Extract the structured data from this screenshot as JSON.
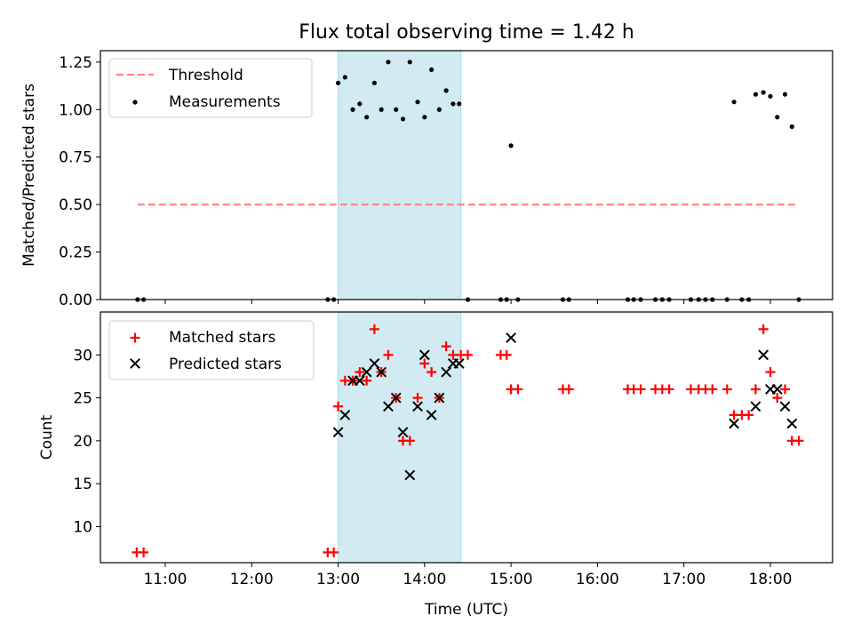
{
  "chart_data": [
    {
      "type": "scatter",
      "title": "Flux total observing time = 1.42 h",
      "ylabel": "Matched/Predicted stars",
      "xlabel": "",
      "xlim": [
        10.25,
        18.72
      ],
      "ylim": [
        0.0,
        1.31
      ],
      "x_ticks": [
        11,
        12,
        13,
        14,
        15,
        16,
        17,
        18
      ],
      "y_ticks": [
        0.0,
        0.25,
        0.5,
        0.75,
        1.0,
        1.25
      ],
      "y_tick_labels": [
        "0.00",
        "0.25",
        "0.50",
        "0.75",
        "1.00",
        "1.25"
      ],
      "highlight_span": [
        13.0,
        14.42
      ],
      "highlight_color": "#add8e6",
      "legend_position": "top-left",
      "threshold": {
        "name": "Threshold",
        "y": 0.5,
        "x_range": [
          10.68,
          18.32
        ],
        "color": "#ff7f7f"
      },
      "series": [
        {
          "name": "Measurements",
          "color": "#000000",
          "points": [
            [
              10.68,
              0.0
            ],
            [
              10.75,
              0.0
            ],
            [
              12.88,
              0.0
            ],
            [
              12.95,
              0.0
            ],
            [
              13.0,
              1.14
            ],
            [
              13.08,
              1.17
            ],
            [
              13.17,
              1.0
            ],
            [
              13.25,
              1.03
            ],
            [
              13.33,
              0.96
            ],
            [
              13.42,
              1.14
            ],
            [
              13.5,
              1.0
            ],
            [
              13.58,
              1.25
            ],
            [
              13.67,
              1.0
            ],
            [
              13.75,
              0.95
            ],
            [
              13.83,
              1.25
            ],
            [
              13.92,
              1.04
            ],
            [
              14.0,
              0.96
            ],
            [
              14.08,
              1.21
            ],
            [
              14.17,
              1.0
            ],
            [
              14.25,
              1.1
            ],
            [
              14.33,
              1.03
            ],
            [
              14.4,
              1.03
            ],
            [
              14.5,
              0.0
            ],
            [
              14.88,
              0.0
            ],
            [
              14.95,
              0.0
            ],
            [
              15.0,
              0.81
            ],
            [
              15.08,
              0.0
            ],
            [
              15.6,
              0.0
            ],
            [
              15.67,
              0.0
            ],
            [
              16.35,
              0.0
            ],
            [
              16.42,
              0.0
            ],
            [
              16.5,
              0.0
            ],
            [
              16.67,
              0.0
            ],
            [
              16.75,
              0.0
            ],
            [
              16.83,
              0.0
            ],
            [
              17.08,
              0.0
            ],
            [
              17.17,
              0.0
            ],
            [
              17.25,
              0.0
            ],
            [
              17.33,
              0.0
            ],
            [
              17.5,
              0.0
            ],
            [
              17.58,
              1.04
            ],
            [
              17.67,
              0.0
            ],
            [
              17.75,
              0.0
            ],
            [
              17.83,
              1.08
            ],
            [
              17.92,
              1.09
            ],
            [
              18.0,
              1.07
            ],
            [
              18.08,
              0.96
            ],
            [
              18.17,
              1.08
            ],
            [
              18.25,
              0.91
            ],
            [
              18.33,
              0.0
            ]
          ]
        }
      ]
    },
    {
      "type": "scatter",
      "title": "",
      "ylabel": "Count",
      "xlabel": "Time (UTC)",
      "xlim": [
        10.25,
        18.72
      ],
      "ylim": [
        5.8,
        35.0
      ],
      "x_ticks": [
        11,
        12,
        13,
        14,
        15,
        16,
        17,
        18
      ],
      "x_tick_labels": [
        "11:00",
        "12:00",
        "13:00",
        "14:00",
        "15:00",
        "16:00",
        "17:00",
        "18:00"
      ],
      "y_ticks": [
        10,
        15,
        20,
        25,
        30
      ],
      "y_tick_labels": [
        "10",
        "15",
        "20",
        "25",
        "30"
      ],
      "highlight_span": [
        13.0,
        14.42
      ],
      "highlight_color": "#add8e6",
      "legend_position": "top-left",
      "series": [
        {
          "name": "Matched stars",
          "marker": "plus",
          "color": "#ff0000",
          "points": [
            [
              10.67,
              7
            ],
            [
              10.75,
              7
            ],
            [
              12.88,
              7
            ],
            [
              12.95,
              7
            ],
            [
              13.0,
              24
            ],
            [
              13.08,
              27
            ],
            [
              13.17,
              27
            ],
            [
              13.25,
              28
            ],
            [
              13.33,
              27
            ],
            [
              13.42,
              33
            ],
            [
              13.5,
              28
            ],
            [
              13.58,
              30
            ],
            [
              13.67,
              25
            ],
            [
              13.75,
              20
            ],
            [
              13.83,
              20
            ],
            [
              13.92,
              25
            ],
            [
              14.0,
              29
            ],
            [
              14.08,
              28
            ],
            [
              14.17,
              25
            ],
            [
              14.25,
              31
            ],
            [
              14.33,
              30
            ],
            [
              14.42,
              30
            ],
            [
              14.5,
              30
            ],
            [
              14.88,
              30
            ],
            [
              14.95,
              30
            ],
            [
              15.0,
              26
            ],
            [
              15.08,
              26
            ],
            [
              15.6,
              26
            ],
            [
              15.67,
              26
            ],
            [
              16.35,
              26
            ],
            [
              16.42,
              26
            ],
            [
              16.5,
              26
            ],
            [
              16.67,
              26
            ],
            [
              16.75,
              26
            ],
            [
              16.83,
              26
            ],
            [
              17.08,
              26
            ],
            [
              17.17,
              26
            ],
            [
              17.25,
              26
            ],
            [
              17.33,
              26
            ],
            [
              17.5,
              26
            ],
            [
              17.58,
              23
            ],
            [
              17.67,
              23
            ],
            [
              17.75,
              23
            ],
            [
              17.83,
              26
            ],
            [
              17.92,
              33
            ],
            [
              18.0,
              28
            ],
            [
              18.08,
              25
            ],
            [
              18.17,
              26
            ],
            [
              18.25,
              20
            ],
            [
              18.33,
              20
            ]
          ]
        },
        {
          "name": "Predicted stars",
          "marker": "x",
          "color": "#000000",
          "points": [
            [
              13.0,
              21
            ],
            [
              13.08,
              23
            ],
            [
              13.17,
              27
            ],
            [
              13.25,
              27
            ],
            [
              13.33,
              28
            ],
            [
              13.42,
              29
            ],
            [
              13.5,
              28
            ],
            [
              13.58,
              24
            ],
            [
              13.67,
              25
            ],
            [
              13.75,
              21
            ],
            [
              13.83,
              16
            ],
            [
              13.92,
              24
            ],
            [
              14.0,
              30
            ],
            [
              14.08,
              23
            ],
            [
              14.17,
              25
            ],
            [
              14.25,
              28
            ],
            [
              14.33,
              29
            ],
            [
              14.4,
              29
            ],
            [
              15.0,
              32
            ],
            [
              17.58,
              22
            ],
            [
              17.83,
              24
            ],
            [
              17.92,
              30
            ],
            [
              18.0,
              26
            ],
            [
              18.08,
              26
            ],
            [
              18.17,
              24
            ],
            [
              18.25,
              22
            ]
          ]
        }
      ]
    }
  ]
}
